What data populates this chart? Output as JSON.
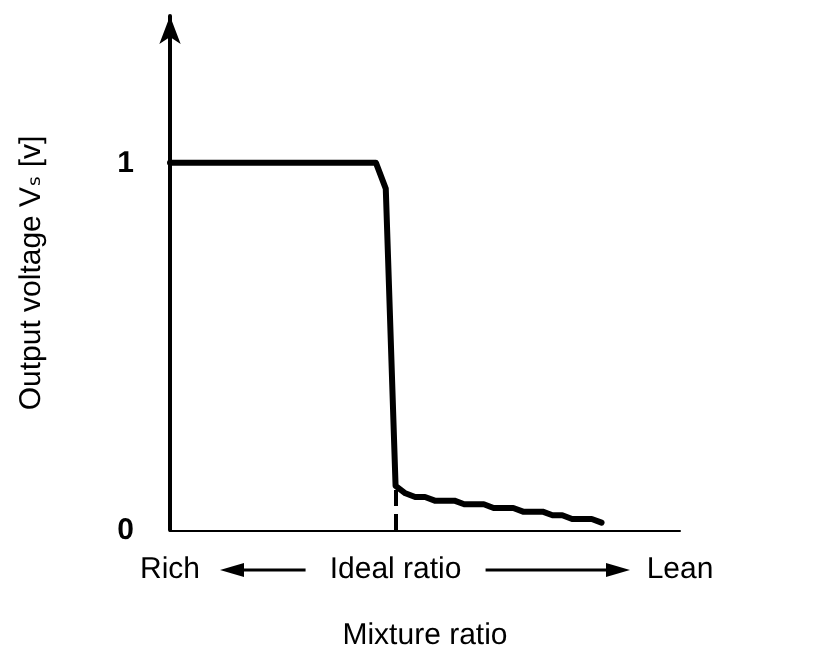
{
  "chart_data": {
    "type": "line",
    "xlabel": "Mixture ratio",
    "ylabel": "Output voltage Vₛ [v]",
    "categories": [
      "Rich",
      null,
      null,
      null,
      null,
      null,
      null,
      null,
      null,
      null,
      null,
      null,
      null,
      null,
      null,
      null,
      null,
      null,
      null,
      null,
      null,
      null,
      null,
      "Ideal ratio",
      null,
      null,
      null,
      null,
      null,
      null,
      null,
      null,
      null,
      null,
      null,
      null,
      null,
      null,
      null,
      null,
      null,
      null,
      null,
      null,
      null,
      null,
      null,
      null,
      null,
      null,
      null,
      null,
      "Lean"
    ],
    "series": [
      {
        "color": "#000000",
        "values": [
          1,
          1,
          1,
          1,
          1,
          1,
          1,
          1,
          1,
          1,
          1,
          1,
          1,
          1,
          1,
          1,
          1,
          1,
          1,
          1,
          1,
          1,
          0.93,
          0.12,
          0.1,
          0.09,
          0.09,
          0.08,
          0.08,
          0.08,
          0.07,
          0.07,
          0.07,
          0.06,
          0.06,
          0.06,
          0.05,
          0.05,
          0.05,
          0.04,
          0.04,
          0.03,
          0.03,
          0.03,
          0.02,
          null,
          null,
          null,
          null,
          null,
          null,
          null,
          null
        ]
      }
    ],
    "ylim": [
      0,
      1.4
    ],
    "yticks": [
      0,
      1
    ],
    "grid": false,
    "line_style": "solid",
    "ref_lines": [
      {
        "axis": "x",
        "value": "Ideal ratio",
        "line_style": "dashed",
        "color": "#000000"
      }
    ]
  }
}
